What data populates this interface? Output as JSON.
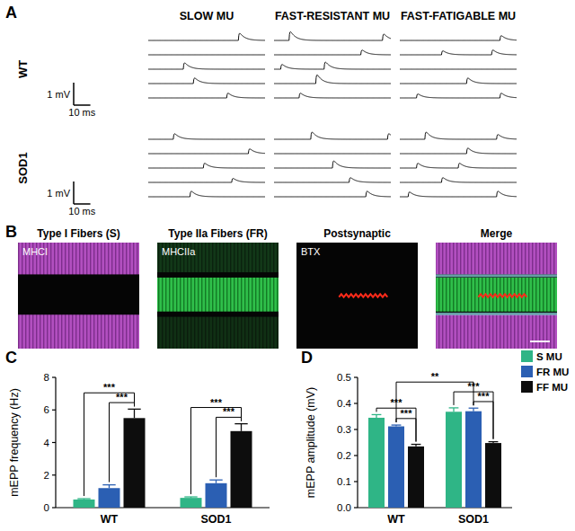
{
  "panel_a": {
    "label": "A",
    "columns": [
      "SLOW MU",
      "FAST-RESISTANT MU",
      "FAST-FATIGABLE MU"
    ],
    "rows": [
      "WT",
      "SOD1"
    ],
    "scale_bar": {
      "voltage": 1,
      "voltage_label": "1 mV",
      "time": 10,
      "time_label": "10 ms"
    },
    "xlim": [
      0,
      70
    ],
    "traces": [
      [
        [
          {
            "times": [
              54
            ],
            "amplitudes": [
              0.45
            ]
          },
          {
            "times": [],
            "amplitudes": []
          },
          {
            "times": [
              21
            ],
            "amplitudes": [
              0.4
            ]
          },
          {
            "times": [
              27
            ],
            "amplitudes": [
              0.35
            ]
          },
          {
            "times": [
              47
            ],
            "amplitudes": [
              0.3
            ]
          }
        ],
        [
          {
            "times": [
              9,
              65
            ],
            "amplitudes": [
              0.55,
              0.4
            ]
          },
          {
            "times": [
              52
            ],
            "amplitudes": [
              0.3
            ]
          },
          {
            "times": [
              4,
              30
            ],
            "amplitudes": [
              0.3,
              0.45
            ]
          },
          {
            "times": [
              25
            ],
            "amplitudes": [
              0.55
            ]
          },
          {
            "times": [
              15
            ],
            "amplitudes": [
              0.3
            ]
          }
        ],
        [
          {
            "times": [
              60
            ],
            "amplitudes": [
              0.3
            ]
          },
          {
            "times": [
              25,
              55
            ],
            "amplitudes": [
              0.25,
              0.3
            ]
          },
          {
            "times": [],
            "amplitudes": []
          },
          {
            "times": [
              40
            ],
            "amplitudes": [
              0.35
            ]
          },
          {
            "times": [
              10,
              60
            ],
            "amplitudes": [
              0.25,
              0.3
            ]
          }
        ]
      ],
      [
        [
          {
            "times": [
              15
            ],
            "amplitudes": [
              0.35
            ]
          },
          {
            "times": [
              60
            ],
            "amplitudes": [
              0.3
            ]
          },
          {
            "times": [
              33
            ],
            "amplitudes": [
              0.3
            ]
          },
          {
            "times": [
              50
            ],
            "amplitudes": [
              0.25
            ]
          },
          {
            "times": [
              25
            ],
            "amplitudes": [
              0.35
            ]
          }
        ],
        [
          {
            "times": [
              22,
              68
            ],
            "amplitudes": [
              0.45,
              0.35
            ]
          },
          {
            "times": [],
            "amplitudes": []
          },
          {
            "times": [
              35
            ],
            "amplitudes": [
              0.45
            ]
          },
          {
            "times": [
              45
            ],
            "amplitudes": [
              0.3
            ]
          },
          {
            "times": [
              55
            ],
            "amplitudes": [
              0.35
            ]
          }
        ],
        [
          {
            "times": [
              15,
              58
            ],
            "amplitudes": [
              0.45,
              0.3
            ]
          },
          {
            "times": [
              40
            ],
            "amplitudes": [
              0.35
            ]
          },
          {
            "times": [
              10,
              35
            ],
            "amplitudes": [
              0.3,
              0.3
            ]
          },
          {
            "times": [
              25
            ],
            "amplitudes": [
              0.3
            ]
          },
          {
            "times": [
              5,
              58
            ],
            "amplitudes": [
              0.3,
              0.35
            ]
          }
        ]
      ]
    ]
  },
  "panel_b": {
    "label": "B",
    "images": [
      {
        "title": "Type I Fibers (S)",
        "stain": "MHCI"
      },
      {
        "title": "Type IIa Fibers (FR)",
        "stain": "MHCIIa"
      },
      {
        "title": "Postsynaptic",
        "stain": "BTX"
      },
      {
        "title": "Merge"
      }
    ]
  },
  "chart_data": [
    {
      "panel": "C",
      "type": "bar",
      "y_label": "mEPP frequency (Hz)",
      "categories": [
        "WT",
        "SOD1"
      ],
      "series": [
        {
          "name": "S MU",
          "color": "#2fb586",
          "values": [
            0.5,
            0.6
          ],
          "errors": [
            0.05,
            0.06
          ]
        },
        {
          "name": "FR MU",
          "color": "#2b5fb3",
          "values": [
            1.2,
            1.5
          ],
          "errors": [
            0.2,
            0.2
          ]
        },
        {
          "name": "FF MU",
          "color": "#0d0d0d",
          "values": [
            5.5,
            4.7
          ],
          "errors": [
            0.55,
            0.45
          ]
        }
      ],
      "ylim": [
        0,
        8
      ],
      "yticks": [
        0,
        2,
        4,
        6,
        8
      ],
      "grid": false,
      "significance": [
        {
          "from": [
            0,
            1
          ],
          "to": [
            0,
            2
          ],
          "label": "***"
        },
        {
          "from": [
            0,
            0
          ],
          "to": [
            0,
            2
          ],
          "label": "***"
        },
        {
          "from": [
            1,
            1
          ],
          "to": [
            1,
            2
          ],
          "label": "***"
        },
        {
          "from": [
            1,
            0
          ],
          "to": [
            1,
            2
          ],
          "label": "***"
        }
      ]
    },
    {
      "panel": "D",
      "type": "bar",
      "y_label": "mEPP amplitude (mV)",
      "categories": [
        "WT",
        "SOD1"
      ],
      "series": [
        {
          "name": "S MU",
          "color": "#2fb586",
          "values": [
            0.345,
            0.368
          ],
          "errors": [
            0.012,
            0.015
          ]
        },
        {
          "name": "FR MU",
          "color": "#2b5fb3",
          "values": [
            0.312,
            0.37
          ],
          "errors": [
            0.005,
            0.012
          ]
        },
        {
          "name": "FF MU",
          "color": "#0d0d0d",
          "values": [
            0.235,
            0.248
          ],
          "errors": [
            0.008,
            0.005
          ]
        }
      ],
      "ylim": [
        0,
        0.5
      ],
      "yticks": [
        {
          "value": 0,
          "label": "0.0"
        },
        0.1,
        0.2,
        0.3,
        0.4,
        0.5
      ],
      "grid": false,
      "legend": "top-right",
      "significance": [
        {
          "from": [
            0,
            1
          ],
          "to": [
            0,
            2
          ],
          "label": "***"
        },
        {
          "from": [
            0,
            0
          ],
          "to": [
            0,
            2
          ],
          "label": "***"
        },
        {
          "from": [
            1,
            1
          ],
          "to": [
            1,
            2
          ],
          "label": "***"
        },
        {
          "from": [
            1,
            0
          ],
          "to": [
            1,
            2
          ],
          "label": "***"
        },
        {
          "from": [
            0,
            1
          ],
          "to": [
            1,
            1
          ],
          "label": "**"
        }
      ]
    }
  ]
}
